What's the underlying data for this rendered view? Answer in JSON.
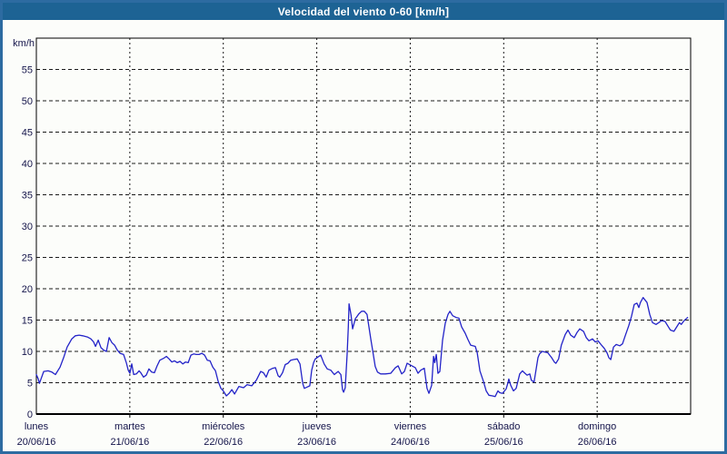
{
  "window": {
    "title": "Velocidad del viento 0-60 [km/h]"
  },
  "colors": {
    "titlebar_bg": "#1d6394",
    "titlebar_text": "#ffffff",
    "frame_border": "#2d6ba1",
    "background": "#fcfdfa",
    "plot_border": "#000000",
    "grid": "#1a1a1a",
    "line": "#2323c8",
    "tick_text": "#14144a"
  },
  "chart_data": {
    "type": "line",
    "title": "Velocidad del viento 0-60 [km/h]",
    "ylabel": "km/h",
    "ylim": [
      0,
      60
    ],
    "yticks": [
      0,
      5,
      10,
      15,
      20,
      25,
      30,
      35,
      40,
      45,
      50,
      55
    ],
    "grid": "dashed",
    "xlim_hours": [
      0,
      168
    ],
    "x_days": [
      {
        "name": "lunes",
        "date": "20/06/16"
      },
      {
        "name": "martes",
        "date": "21/06/16"
      },
      {
        "name": "miércoles",
        "date": "22/06/16"
      },
      {
        "name": "jueves",
        "date": "23/06/16"
      },
      {
        "name": "viernes",
        "date": "24/06/16"
      },
      {
        "name": "sábado",
        "date": "25/06/16"
      },
      {
        "name": "domingo",
        "date": "26/06/16"
      }
    ],
    "series": [
      {
        "name": "velocidad del viento",
        "unit": "km/h",
        "color": "#2323c8",
        "points": [
          [
            0,
            6.3
          ],
          [
            0.5,
            5.6
          ],
          [
            0.8,
            4.9
          ],
          [
            1.9,
            6.8
          ],
          [
            3,
            6.9
          ],
          [
            4,
            6.7
          ],
          [
            4.9,
            6.3
          ],
          [
            6.1,
            7.5
          ],
          [
            7,
            9
          ],
          [
            7.9,
            10.7
          ],
          [
            9.1,
            12
          ],
          [
            10,
            12.5
          ],
          [
            11,
            12.6
          ],
          [
            11.9,
            12.5
          ],
          [
            13.1,
            12.3
          ],
          [
            14,
            12
          ],
          [
            14.7,
            11.5
          ],
          [
            15.2,
            10.8
          ],
          [
            15.9,
            11.8
          ],
          [
            16.6,
            10.6
          ],
          [
            17.3,
            10.2
          ],
          [
            18,
            10
          ],
          [
            18.7,
            12.2
          ],
          [
            19.4,
            11.4
          ],
          [
            20.1,
            11
          ],
          [
            20.8,
            10.2
          ],
          [
            21.5,
            9.7
          ],
          [
            22.4,
            9.5
          ],
          [
            23.1,
            8.2
          ],
          [
            23.6,
            7
          ],
          [
            24,
            6.5
          ],
          [
            24.5,
            8
          ],
          [
            25,
            6.3
          ],
          [
            25.7,
            6.4
          ],
          [
            26.4,
            6.9
          ],
          [
            26.8,
            6.6
          ],
          [
            27.5,
            5.9
          ],
          [
            28.2,
            6.2
          ],
          [
            28.9,
            7.2
          ],
          [
            29.6,
            6.7
          ],
          [
            30.3,
            6.6
          ],
          [
            31,
            7.7
          ],
          [
            31.7,
            8.6
          ],
          [
            32.7,
            8.9
          ],
          [
            33.4,
            9.2
          ],
          [
            34.1,
            8.8
          ],
          [
            34.8,
            8.3
          ],
          [
            35.5,
            8.5
          ],
          [
            36.2,
            8.2
          ],
          [
            36.9,
            8.4
          ],
          [
            37.6,
            8
          ],
          [
            38.3,
            8.3
          ],
          [
            39,
            8.2
          ],
          [
            39.7,
            9.4
          ],
          [
            40.4,
            9.6
          ],
          [
            41.1,
            9.5
          ],
          [
            41.8,
            9.5
          ],
          [
            42.5,
            9.7
          ],
          [
            43.2,
            9.4
          ],
          [
            43.9,
            8.6
          ],
          [
            44.6,
            8.5
          ],
          [
            45.3,
            7.5
          ],
          [
            46,
            6.9
          ],
          [
            46.7,
            5.2
          ],
          [
            47.4,
            4.1
          ],
          [
            48,
            3.7
          ],
          [
            48.8,
            2.9
          ],
          [
            49.5,
            3.3
          ],
          [
            50.2,
            3.9
          ],
          [
            50.9,
            3.2
          ],
          [
            52,
            4.4
          ],
          [
            53.2,
            4.2
          ],
          [
            54.1,
            4.7
          ],
          [
            55.3,
            4.5
          ],
          [
            56.5,
            5.4
          ],
          [
            57.6,
            6.8
          ],
          [
            58.3,
            6.6
          ],
          [
            59,
            5.9
          ],
          [
            59.7,
            7
          ],
          [
            60.7,
            7.3
          ],
          [
            61.4,
            7.4
          ],
          [
            62.1,
            6.1
          ],
          [
            62.5,
            5.9
          ],
          [
            63.2,
            6.6
          ],
          [
            63.9,
            7.9
          ],
          [
            64.6,
            8.1
          ],
          [
            65.3,
            8.6
          ],
          [
            66,
            8.7
          ],
          [
            67,
            8.8
          ],
          [
            67.7,
            8
          ],
          [
            68.4,
            4.9
          ],
          [
            68.8,
            4.1
          ],
          [
            69.5,
            4.3
          ],
          [
            70.2,
            4.5
          ],
          [
            70.7,
            7
          ],
          [
            71.2,
            8.2
          ],
          [
            71.6,
            8.8
          ],
          [
            72.3,
            9.1
          ],
          [
            73,
            9.4
          ],
          [
            73.9,
            8
          ],
          [
            74.7,
            7.2
          ],
          [
            75.6,
            7
          ],
          [
            76.5,
            6.3
          ],
          [
            77.5,
            6.8
          ],
          [
            78.2,
            6.3
          ],
          [
            78.6,
            3.9
          ],
          [
            78.9,
            3.5
          ],
          [
            79.3,
            4.2
          ],
          [
            79.8,
            9.6
          ],
          [
            80.1,
            13.9
          ],
          [
            80.3,
            17.6
          ],
          [
            80.8,
            15.8
          ],
          [
            81.2,
            13.6
          ],
          [
            81.9,
            15.2
          ],
          [
            82.8,
            16
          ],
          [
            83.5,
            16.4
          ],
          [
            84.2,
            16.4
          ],
          [
            84.9,
            15.9
          ],
          [
            85.4,
            13.9
          ],
          [
            85.9,
            11.9
          ],
          [
            86.3,
            10.3
          ],
          [
            87,
            7.6
          ],
          [
            87.6,
            6.7
          ],
          [
            88.4,
            6.4
          ],
          [
            89.6,
            6.4
          ],
          [
            91,
            6.5
          ],
          [
            92.2,
            7.4
          ],
          [
            92.9,
            7.7
          ],
          [
            93.8,
            6.4
          ],
          [
            94.5,
            6.8
          ],
          [
            95.2,
            8.1
          ],
          [
            96.1,
            7.8
          ],
          [
            97.3,
            7.4
          ],
          [
            98,
            6.5
          ],
          [
            98.7,
            7
          ],
          [
            99.6,
            7.3
          ],
          [
            100.3,
            4.1
          ],
          [
            100.8,
            3.3
          ],
          [
            101.5,
            4.6
          ],
          [
            102,
            9.2
          ],
          [
            102.3,
            8.2
          ],
          [
            102.7,
            9.5
          ],
          [
            103.1,
            6.5
          ],
          [
            103.6,
            6.8
          ],
          [
            104.3,
            11.8
          ],
          [
            105,
            14.5
          ],
          [
            105.7,
            15.9
          ],
          [
            106.2,
            16.4
          ],
          [
            106.9,
            15.7
          ],
          [
            107.8,
            15.4
          ],
          [
            108.5,
            15.3
          ],
          [
            109.2,
            13.9
          ],
          [
            110.1,
            12.9
          ],
          [
            110.8,
            11.9
          ],
          [
            111.5,
            11
          ],
          [
            112.7,
            10.8
          ],
          [
            113.2,
            9.8
          ],
          [
            113.9,
            6.9
          ],
          [
            114.8,
            5.2
          ],
          [
            115.5,
            3.7
          ],
          [
            116.2,
            3
          ],
          [
            117.1,
            2.9
          ],
          [
            117.8,
            2.8
          ],
          [
            118.5,
            3.7
          ],
          [
            119,
            3.4
          ],
          [
            119.7,
            3.3
          ],
          [
            120.6,
            4
          ],
          [
            121.1,
            5
          ],
          [
            121.3,
            5.6
          ],
          [
            121.8,
            4.6
          ],
          [
            122.5,
            3.7
          ],
          [
            123.2,
            4.1
          ],
          [
            124.1,
            6.4
          ],
          [
            124.8,
            6.9
          ],
          [
            125.3,
            6.6
          ],
          [
            126,
            6.2
          ],
          [
            126.7,
            6.4
          ],
          [
            127.1,
            5.4
          ],
          [
            127.8,
            5.1
          ],
          [
            128.8,
            9
          ],
          [
            129.2,
            9.6
          ],
          [
            129.9,
            10
          ],
          [
            130.6,
            9.9
          ],
          [
            131.3,
            9.8
          ],
          [
            132.3,
            9
          ],
          [
            133,
            8.3
          ],
          [
            133.4,
            8.1
          ],
          [
            134.1,
            8.8
          ],
          [
            134.8,
            11
          ],
          [
            135.8,
            12.7
          ],
          [
            136.5,
            13.4
          ],
          [
            137.2,
            12.6
          ],
          [
            138.1,
            12.2
          ],
          [
            138.8,
            13
          ],
          [
            139.5,
            13.6
          ],
          [
            140.5,
            13.2
          ],
          [
            141.2,
            12.2
          ],
          [
            141.9,
            11.7
          ],
          [
            142.8,
            12
          ],
          [
            143.5,
            11.5
          ],
          [
            144.2,
            11.7
          ],
          [
            145.1,
            11
          ],
          [
            145.8,
            10.5
          ],
          [
            146.5,
            9.8
          ],
          [
            147,
            9
          ],
          [
            147.5,
            8.7
          ],
          [
            148.2,
            10.7
          ],
          [
            148.9,
            11.1
          ],
          [
            149.8,
            10.9
          ],
          [
            150.5,
            11.2
          ],
          [
            151.2,
            12.5
          ],
          [
            152.1,
            14.1
          ],
          [
            152.8,
            15.6
          ],
          [
            153.5,
            17.5
          ],
          [
            154.2,
            17.7
          ],
          [
            154.7,
            17
          ],
          [
            155.1,
            17.8
          ],
          [
            155.8,
            18.6
          ],
          [
            156.8,
            17.8
          ],
          [
            157.5,
            15.9
          ],
          [
            158.2,
            14.6
          ],
          [
            159.1,
            14.3
          ],
          [
            159.8,
            14.6
          ],
          [
            160.5,
            14.9
          ],
          [
            161.4,
            14.8
          ],
          [
            162.1,
            14.1
          ],
          [
            162.8,
            13.4
          ],
          [
            163.7,
            13.2
          ],
          [
            164.4,
            13.9
          ],
          [
            165.1,
            14.6
          ],
          [
            165.6,
            14.3
          ],
          [
            166.3,
            14.9
          ],
          [
            167.2,
            15.4
          ]
        ]
      }
    ]
  }
}
